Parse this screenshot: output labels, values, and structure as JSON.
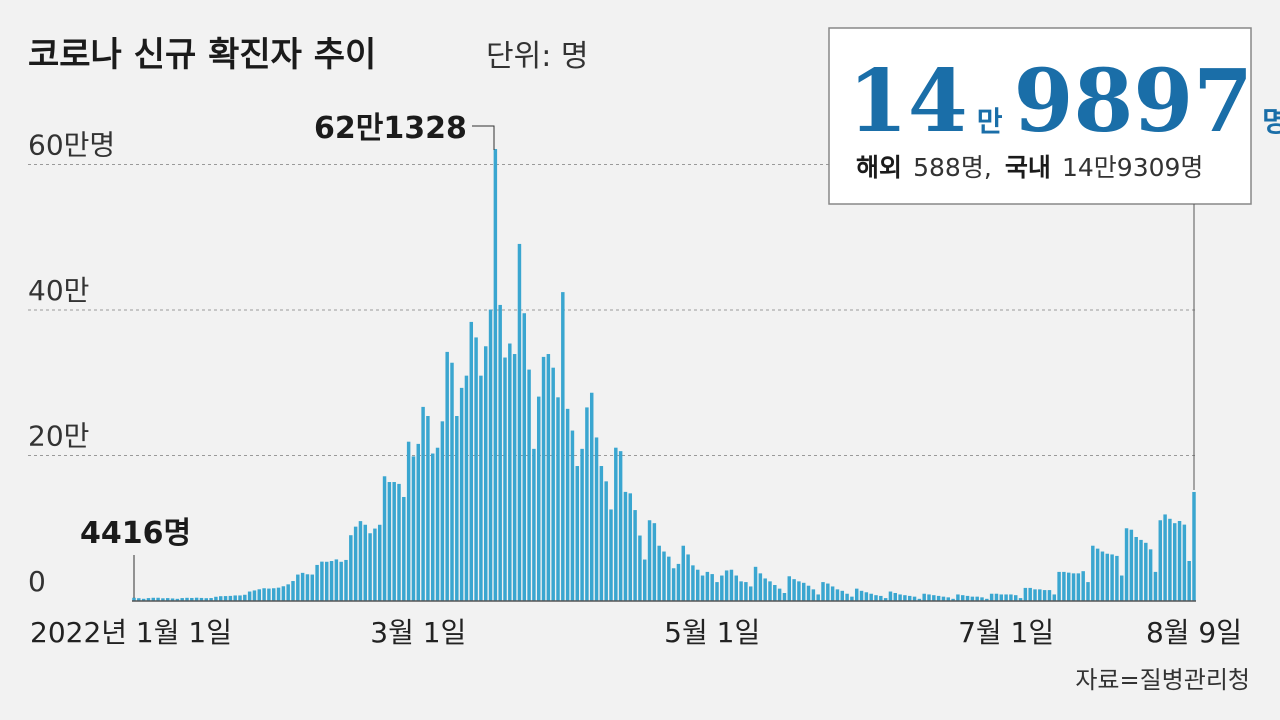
{
  "header": {
    "title": "코로나 신규 확진자 추이",
    "unit": "단위: 명"
  },
  "callout": {
    "big_man": "14",
    "man_unit": "만",
    "big_rest": "9897",
    "person_unit": "명",
    "overseas_label": "해외",
    "overseas_value": "588명,",
    "domestic_label": "국내",
    "domestic_value": "14만9309명"
  },
  "annotations": {
    "first_label": "4416명",
    "peak_label": "62만1328"
  },
  "source": "자료=질병관리청",
  "colors": {
    "bar": "#3aa6d0",
    "accent": "#1a6ea8",
    "background": "#f2f2f2"
  },
  "chart_data": {
    "type": "bar",
    "title": "코로나 신규 확진자 추이",
    "unit": "단위: 명",
    "ylim": [
      0,
      620000
    ],
    "yticks": [
      0,
      200000,
      400000,
      600000
    ],
    "ytick_labels": [
      "0",
      "20만",
      "40만",
      "60만명"
    ],
    "x_start": "2022-01-01",
    "x_end": "2022-08-09",
    "xtick_labels": [
      {
        "date": "2022-01-01",
        "label": "2022년 1월 1일"
      },
      {
        "date": "2022-03-01",
        "label": "3월 1일"
      },
      {
        "date": "2022-05-01",
        "label": "5월 1일"
      },
      {
        "date": "2022-07-01",
        "label": "7월 1일"
      },
      {
        "date": "2022-08-09",
        "label": "8월 9일"
      }
    ],
    "grid": true,
    "highlight": [
      {
        "date": "2022-01-01",
        "value": 4416,
        "label": "4416명"
      },
      {
        "date": "2022-03-17",
        "value": 621328,
        "label": "62만1328"
      },
      {
        "date": "2022-08-09",
        "value": 149897
      }
    ],
    "values": [
      4416,
      3833,
      3021,
      4000,
      4426,
      4442,
      3716,
      4000,
      3510,
      3003,
      4020,
      4383,
      4167,
      4541,
      4191,
      3854,
      4070,
      5805,
      6602,
      6769,
      7005,
      7628,
      7630,
      8571,
      13012,
      14516,
      16095,
      17513,
      17079,
      17528,
      18342,
      20270,
      22907,
      27443,
      36345,
      38681,
      36719,
      36345,
      49567,
      54122,
      53926,
      54941,
      57175,
      53920,
      56431,
      90443,
      102211,
      109831,
      104829,
      93135,
      99573,
      104810,
      171451,
      163566,
      163565,
      161000,
      143000,
      219000,
      198803,
      216000,
      266853,
      254327,
      202721,
      210716,
      247000,
      342446,
      327549,
      254327,
      293000,
      309790,
      383665,
      362338,
      309779,
      350190,
      400624,
      621328,
      407017,
      334708,
      353980,
      339514,
      490881,
      395598,
      318130,
      209169,
      281000,
      335580,
      339514,
      320743,
      280000,
      424641,
      264171,
      234301,
      185566,
      209169,
      266135,
      286294,
      224820,
      185566,
      164481,
      125846,
      210755,
      206000,
      150000,
      148000,
      125000,
      90000,
      57000,
      111000,
      107000,
      76000,
      68000,
      61000,
      45000,
      51000,
      76000,
      64000,
      49000,
      43000,
      35000,
      40000,
      37000,
      26000,
      35000,
      42000,
      43000,
      35000,
      27000,
      26000,
      20000,
      47000,
      38000,
      31000,
      27000,
      22000,
      17000,
      11000,
      34000,
      30000,
      27000,
      25000,
      21000,
      16000,
      9000,
      26000,
      24000,
      20000,
      16000,
      14000,
      10000,
      6000,
      17000,
      14000,
      12000,
      10000,
      8000,
      7000,
      4000,
      13000,
      11000,
      9000,
      8000,
      7000,
      6000,
      3000,
      10000,
      9000,
      8000,
      7000,
      6000,
      5000,
      3000,
      9000,
      8000,
      7000,
      6000,
      6000,
      5000,
      3000,
      10000,
      10000,
      9000,
      9000,
      9000,
      8000,
      4000,
      18000,
      18000,
      16000,
      16000,
      15000,
      15000,
      9000,
      40000,
      40000,
      39000,
      38000,
      38000,
      41000,
      26000,
      76000,
      72000,
      68000,
      65000,
      64000,
      62000,
      35000,
      100000,
      98000,
      88000,
      84000,
      80000,
      71000,
      40000,
      111000,
      119000,
      113000,
      107000,
      110000,
      105000,
      55000,
      149897
    ]
  }
}
